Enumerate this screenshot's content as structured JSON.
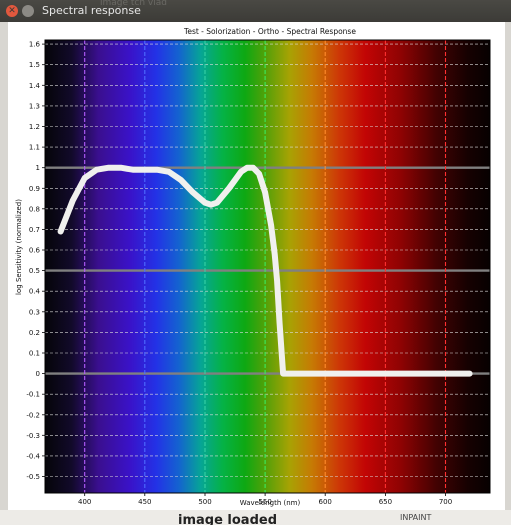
{
  "window": {
    "title": "Spectral response",
    "ghost_text": "image tch viad",
    "bottom_ghost": "image loaded",
    "bottom_right": "INPAINT"
  },
  "chart_data": {
    "type": "line",
    "title": "Test - Solorization - Ortho - Spectral Response",
    "xlabel": "Wavelength (nm)",
    "ylabel": "log Sensitivity (normalized)",
    "xlim": [
      367,
      737
    ],
    "ylim": [
      -0.58,
      1.62
    ],
    "xticks": [
      400,
      450,
      500,
      550,
      600,
      650,
      700
    ],
    "yticks": [
      -0.5,
      -0.4,
      -0.3,
      -0.2,
      -0.1,
      0,
      0.1,
      0.2,
      0.3,
      0.4,
      0.5,
      0.6,
      0.7,
      0.8,
      0.9,
      1,
      1.1,
      1.2,
      1.3,
      1.4,
      1.5,
      1.6
    ],
    "grid": true,
    "series": [
      {
        "x": [
          380,
          390,
          400,
          410,
          420,
          430,
          440,
          450,
          460,
          470,
          480,
          490,
          500,
          505,
          510,
          520,
          530,
          535,
          540,
          545,
          550,
          555,
          558,
          560,
          562,
          565,
          570,
          600,
          650,
          700,
          720
        ],
        "y": [
          0.69,
          0.84,
          0.95,
          0.99,
          1.0,
          1.0,
          0.99,
          0.99,
          0.99,
          0.98,
          0.94,
          0.88,
          0.83,
          0.82,
          0.83,
          0.9,
          0.98,
          1.0,
          1.0,
          0.97,
          0.88,
          0.72,
          0.58,
          0.45,
          0.25,
          0.0,
          0.0,
          0.0,
          0.0,
          0.0,
          0.0
        ],
        "color": "#f0f0ee"
      }
    ]
  },
  "colors": {
    "curve": "#f0f0ee",
    "dashed_grid": "#dcdcdc",
    "heavy_grid": "#808080",
    "band_violet": "#b45cff",
    "band_blue": "#4d6dff",
    "band_cyan": "#35d0a6",
    "band_green": "#3aea5e",
    "band_orange": "#ff8a2c",
    "band_red": "#ff3030"
  }
}
